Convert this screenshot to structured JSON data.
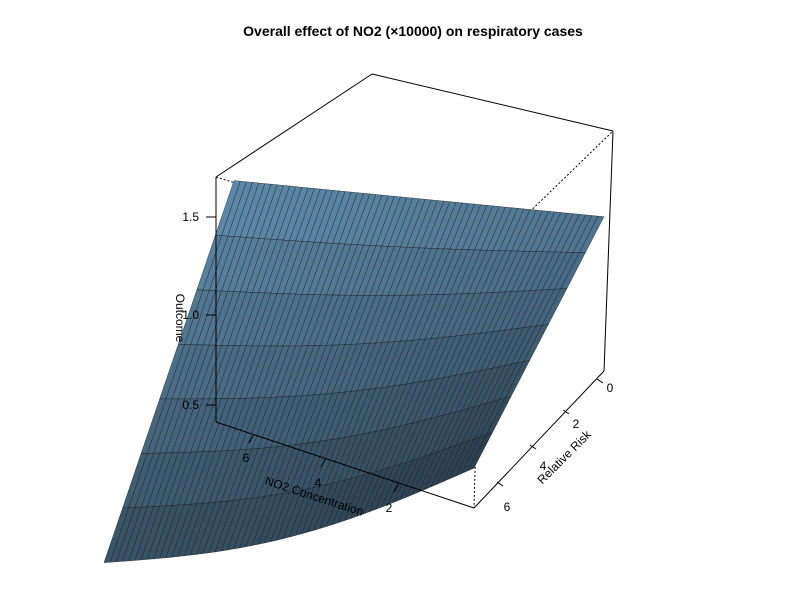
{
  "chart_data": {
    "type": "surface",
    "title": "Overall effect of NO2 (×10000) on respiratory cases",
    "xlabel": "NO2 Concentration",
    "ylabel": "Relative Risk",
    "zlabel": "Outcome",
    "x_ticks": [
      "2",
      "4",
      "6"
    ],
    "y_ticks": [
      "0",
      "2",
      "4",
      "6"
    ],
    "z_ticks": [
      "0.5",
      "1.0",
      "1.5"
    ],
    "xlim": [
      0,
      7
    ],
    "ylim": [
      0,
      7
    ],
    "zlim": [
      0.4,
      1.75
    ],
    "corner_values": {
      "x_min_y_min": 1.25,
      "x_max_y_min": 1.73,
      "x_min_y_max": 0.62,
      "x_max_y_max": 0.38
    },
    "surface_color": "#5b86a6",
    "box": true,
    "grid": false
  }
}
